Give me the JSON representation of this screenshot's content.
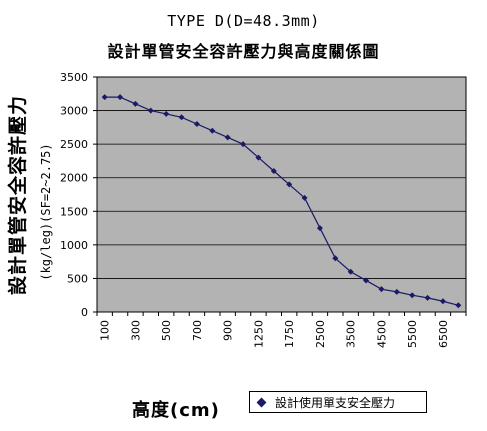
{
  "chart_data": {
    "type": "line",
    "title_line1": "TYPE D(D=48.3mm)",
    "title_line2": "設計單管安全容許壓力與高度關係圖",
    "xlabel": "高度(cm)",
    "ylabel_main": "設計單管安全容許壓力",
    "ylabel_sub": "(kg/leg)(SF=2~2.75)",
    "x_tick_labels": [
      "100",
      "300",
      "500",
      "700",
      "900",
      "1250",
      "1750",
      "2500",
      "3500",
      "4500",
      "5500",
      "6500"
    ],
    "y_ticks": [
      0,
      500,
      1000,
      1500,
      2000,
      2500,
      3000,
      3500
    ],
    "ylim": [
      0,
      3500
    ],
    "grid": true,
    "legend_position": "bottom-right",
    "series": [
      {
        "name": "設計使用單支安全壓力",
        "color": "#1a1a66",
        "values": [
          3200,
          3200,
          3100,
          3000,
          2950,
          2900,
          2800,
          2700,
          2600,
          2500,
          2300,
          2100,
          1900,
          1700,
          1250,
          800,
          600,
          470,
          340,
          300,
          250,
          210,
          160,
          100
        ]
      }
    ]
  }
}
